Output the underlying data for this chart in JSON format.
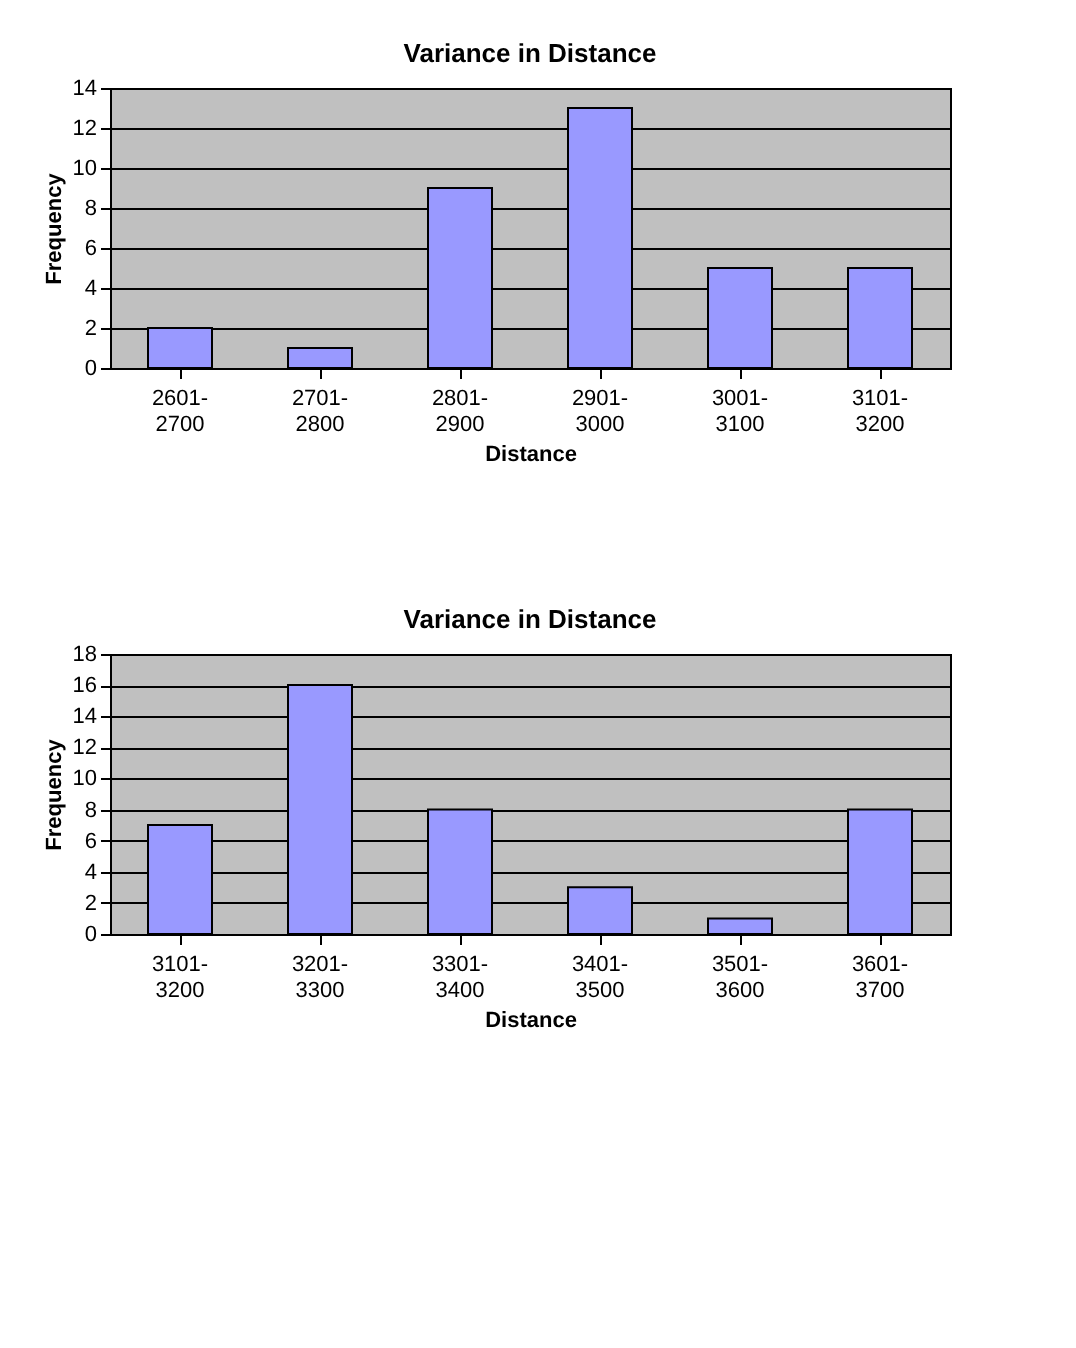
{
  "chart_data": [
    {
      "type": "bar",
      "title": "Variance in Distance",
      "xlabel": "Distance",
      "ylabel": "Frequency",
      "categories": [
        "2601-2700",
        "2701-2800",
        "2801-2900",
        "2901-3000",
        "3001-3100",
        "3101-3200"
      ],
      "values": [
        2,
        1,
        9,
        13,
        5,
        5
      ],
      "color": "#9999ff",
      "ylim": [
        0,
        14
      ],
      "yticks": [
        0,
        2,
        4,
        6,
        8,
        10,
        12,
        14
      ],
      "grid": "y"
    },
    {
      "type": "bar",
      "title": "Variance in Distance",
      "xlabel": "Distance",
      "ylabel": "Frequency",
      "categories": [
        "3101-3200",
        "3201-3300",
        "3301-3400",
        "3401-3500",
        "3501-3600",
        "3601-3700"
      ],
      "values": [
        7,
        16,
        8,
        3,
        1,
        8
      ],
      "color": "#9999ff",
      "ylim": [
        0,
        18
      ],
      "yticks": [
        0,
        2,
        4,
        6,
        8,
        10,
        12,
        14,
        16,
        18
      ],
      "grid": "y"
    }
  ]
}
